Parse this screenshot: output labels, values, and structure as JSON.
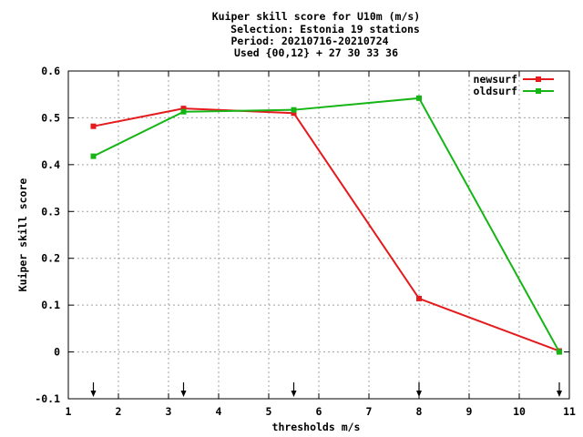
{
  "chart_data": {
    "type": "line",
    "title_lines": [
      "Kuiper skill score  for U10m (m/s)",
      "Selection: Estonia     19 stations",
      "Period: 20210716-20210724",
      "Used {00,12} + 27 30 33 36"
    ],
    "xlabel": "thresholds m/s",
    "ylabel": "Kuiper skill score",
    "xlim": [
      1,
      11
    ],
    "ylim": [
      -0.1,
      0.6
    ],
    "x_ticks": [
      1,
      2,
      3,
      4,
      5,
      6,
      7,
      8,
      9,
      10,
      11
    ],
    "y_ticks": [
      -0.1,
      0,
      0.1,
      0.2,
      0.3,
      0.4,
      0.5,
      0.6
    ],
    "y_tick_labels": [
      "-0.1",
      "0",
      "0.1",
      "0.2",
      "0.3",
      "0.4",
      "0.5",
      "0.6"
    ],
    "grid": true,
    "legend_position": "top-right",
    "series": [
      {
        "name": "newsurf",
        "color": "#e41a1c",
        "x": [
          1.5,
          3.3,
          5.5,
          8.0,
          10.8
        ],
        "y": [
          0.482,
          0.52,
          0.51,
          0.114,
          0.002
        ]
      },
      {
        "name": "oldsurf",
        "color": "#16b516",
        "x": [
          1.5,
          3.3,
          5.5,
          8.0,
          10.8
        ],
        "y": [
          0.418,
          0.513,
          0.517,
          0.542,
          0.0
        ]
      }
    ],
    "arrow_markers_x": [
      1.5,
      3.3,
      5.5,
      8.0,
      10.8
    ]
  }
}
